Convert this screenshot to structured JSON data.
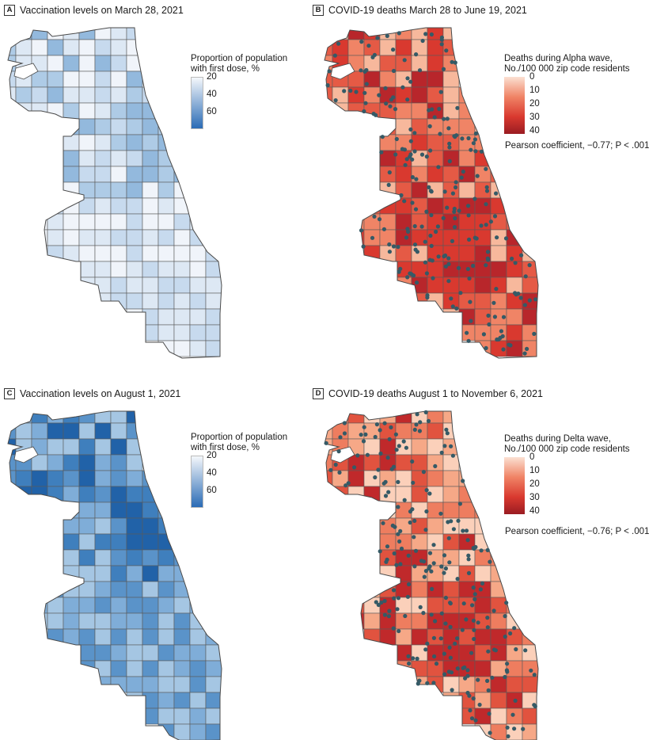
{
  "panels": [
    {
      "letter": "A",
      "title": "Vaccination levels on March 28, 2021",
      "legend_title_1": "Proportion of population",
      "legend_title_2": "with first dose, %",
      "ticks": [
        "20",
        "40",
        "60"
      ],
      "palette": [
        "#f0f4fa",
        "#dde8f4",
        "#c7daee",
        "#aecbe6",
        "#93b9dd"
      ],
      "scale": "blue"
    },
    {
      "letter": "B",
      "title": "COVID-19 deaths March 28 to June 19, 2021",
      "legend_title_1": "Deaths during Alpha wave,",
      "legend_title_2": "No./100 000 zip code residents",
      "ticks": [
        "0",
        "10",
        "20",
        "30",
        "40"
      ],
      "pearson": "Pearson coefficient, −0.77; P < .001",
      "palette": [
        "#f7b89c",
        "#f08466",
        "#e55a45",
        "#d9392f",
        "#b8262b"
      ],
      "scale": "red",
      "dot_color": "#355a66"
    },
    {
      "letter": "C",
      "title": "Vaccination levels on August 1, 2021",
      "legend_title_1": "Proportion of population",
      "legend_title_2": "with first dose, %",
      "ticks": [
        "20",
        "40",
        "60"
      ],
      "palette": [
        "#a5c6e3",
        "#7fadd8",
        "#5a93c9",
        "#3f7fbd",
        "#2162a8"
      ],
      "scale": "blue"
    },
    {
      "letter": "D",
      "title": "COVID-19 deaths August 1 to November 6, 2021",
      "legend_title_1": "Deaths during Delta wave,",
      "legend_title_2": "No./100 000 zip code residents",
      "ticks": [
        "0",
        "10",
        "20",
        "30",
        "40"
      ],
      "pearson": "Pearson coefficient, −0.76; P < .001",
      "palette": [
        "#fbd0ba",
        "#f6a887",
        "#ee7d5f",
        "#e1533f",
        "#c0292b"
      ],
      "scale": "red",
      "dot_color": "#355a66"
    }
  ]
}
